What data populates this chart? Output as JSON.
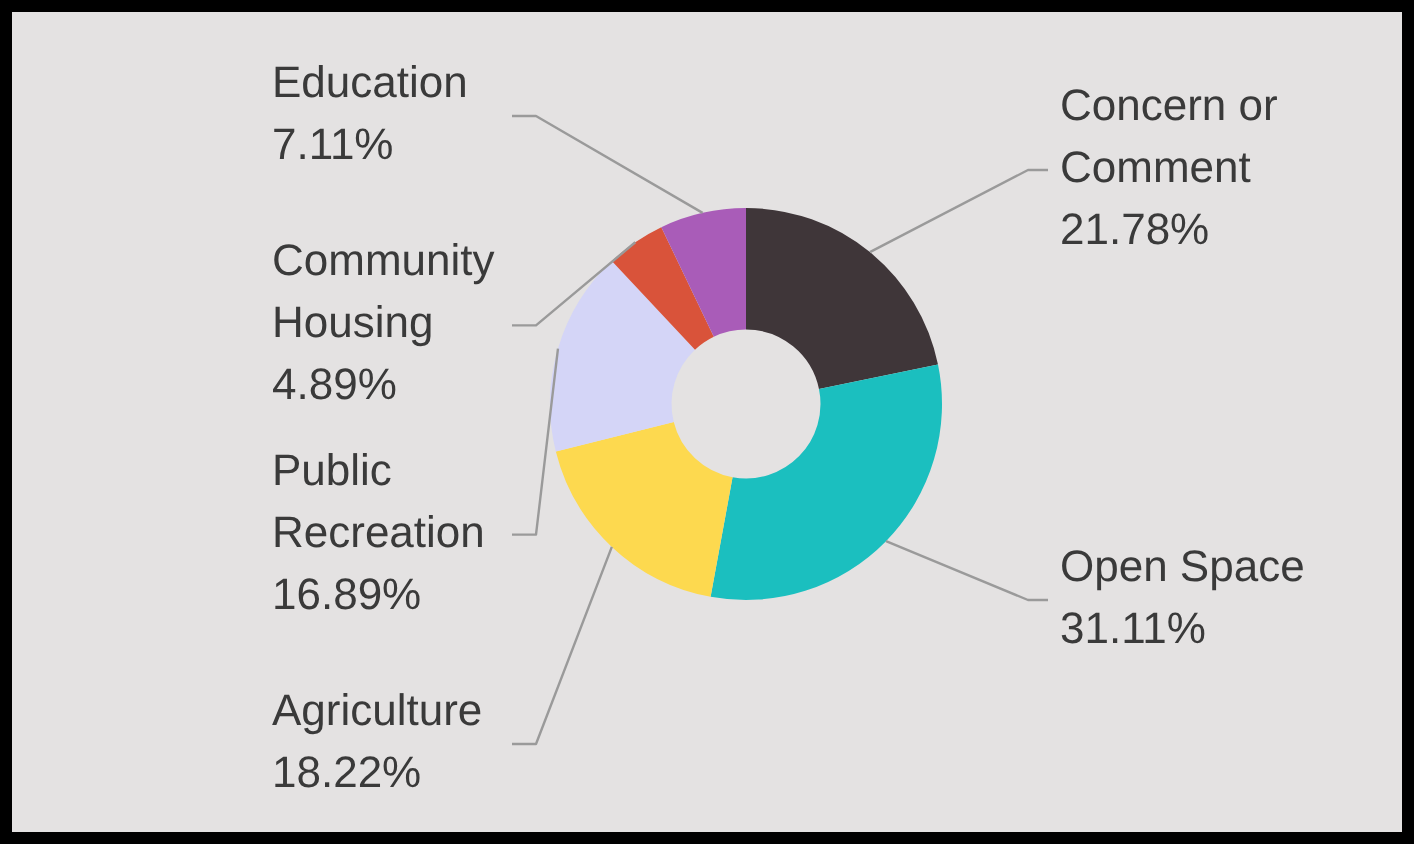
{
  "chart_data": {
    "type": "donut",
    "categories": [
      "Concern or Comment",
      "Open Space",
      "Agriculture",
      "Public Recreation",
      "Community Housing",
      "Education"
    ],
    "values": [
      21.78,
      31.11,
      18.22,
      16.89,
      4.89,
      7.11
    ],
    "value_labels": [
      "21.78%",
      "31.11%",
      "18.22%",
      "16.89%",
      "4.89%",
      "7.11%"
    ],
    "colors": [
      "#3f3639",
      "#1bbfbf",
      "#fdd94f",
      "#d4d5f7",
      "#d9533a",
      "#a95cb8"
    ],
    "legend": false
  }
}
